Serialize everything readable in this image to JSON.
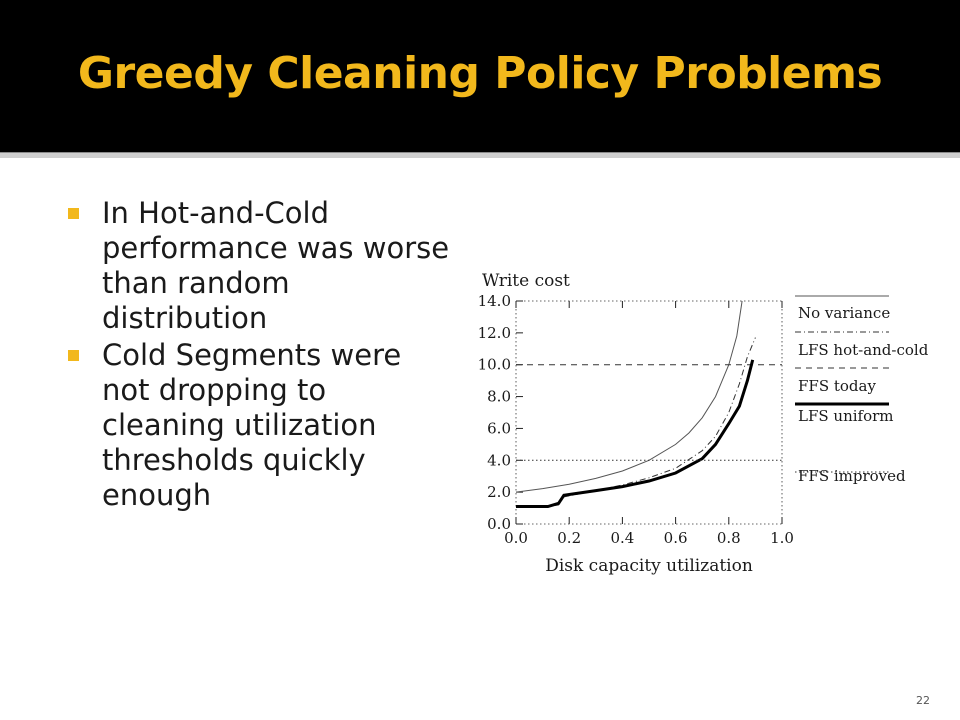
{
  "slide": {
    "title": "Greedy Cleaning Policy Problems",
    "bullets": [
      "In Hot-and-Cold performance was worse than random distribution",
      "Cold Segments were not dropping to cleaning utilization thresholds quickly enough"
    ],
    "page_number": "22"
  },
  "colors": {
    "title": "#f2b81c",
    "bar": "#000000",
    "bullet": "#f2b81c"
  },
  "chart_data": {
    "type": "line",
    "title": "",
    "ylabel": "Write cost",
    "xlabel": "Disk capacity utilization",
    "xlim": [
      0,
      1
    ],
    "ylim": [
      0,
      14
    ],
    "xticks": [
      "0.0",
      "0.2",
      "0.4",
      "0.6",
      "0.8",
      "1.0"
    ],
    "yticks": [
      "0.0",
      "2.0",
      "4.0",
      "6.0",
      "8.0",
      "10.0",
      "12.0",
      "14.0"
    ],
    "series": [
      {
        "name": "No variance",
        "style": "thin-solid",
        "x": [
          0,
          0.1,
          0.2,
          0.3,
          0.4,
          0.5,
          0.6,
          0.65,
          0.7,
          0.75,
          0.8,
          0.83,
          0.85
        ],
        "y": [
          2.0,
          2.22,
          2.5,
          2.86,
          3.33,
          4.0,
          5.0,
          5.71,
          6.67,
          8.0,
          10.0,
          11.8,
          14.0
        ]
      },
      {
        "name": "LFS hot-and-cold",
        "style": "dash-dot",
        "x": [
          0.0,
          0.12,
          0.16,
          0.18,
          0.3,
          0.4,
          0.5,
          0.6,
          0.7,
          0.75,
          0.8,
          0.84,
          0.87,
          0.9
        ],
        "y": [
          1.1,
          1.1,
          1.2,
          1.7,
          2.1,
          2.45,
          2.9,
          3.5,
          4.6,
          5.5,
          7.0,
          8.8,
          10.5,
          11.7
        ]
      },
      {
        "name": "FFS today",
        "style": "hline-dashed",
        "x": [
          0,
          1
        ],
        "y": [
          10,
          10
        ]
      },
      {
        "name": "LFS uniform",
        "style": "thick-solid",
        "x": [
          0.0,
          0.12,
          0.16,
          0.18,
          0.3,
          0.4,
          0.5,
          0.6,
          0.7,
          0.75,
          0.8,
          0.84,
          0.87,
          0.89
        ],
        "y": [
          1.1,
          1.1,
          1.3,
          1.8,
          2.1,
          2.35,
          2.7,
          3.2,
          4.1,
          5.0,
          6.3,
          7.4,
          9.0,
          10.3
        ]
      },
      {
        "name": "FFS improved",
        "style": "hline-dotted",
        "x": [
          0,
          1
        ],
        "y": [
          4,
          4
        ]
      }
    ],
    "legend_position": "right",
    "grid": false
  }
}
